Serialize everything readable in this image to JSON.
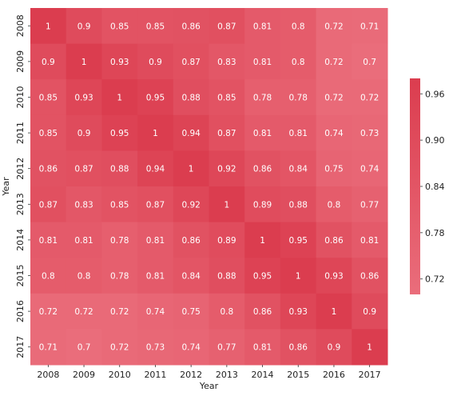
{
  "chart_data": {
    "type": "heatmap",
    "title": "",
    "xlabel": "Year",
    "ylabel": "Year",
    "x_categories": [
      "2008",
      "2009",
      "2010",
      "2011",
      "2012",
      "2013",
      "2014",
      "2015",
      "2016",
      "2017"
    ],
    "y_categories": [
      "2008",
      "2009",
      "2010",
      "2011",
      "2012",
      "2013",
      "2014",
      "2015",
      "2016",
      "2017"
    ],
    "values": [
      [
        1,
        0.9,
        0.85,
        0.85,
        0.86,
        0.87,
        0.81,
        0.8,
        0.72,
        0.71
      ],
      [
        0.9,
        1,
        0.93,
        0.9,
        0.87,
        0.83,
        0.81,
        0.8,
        0.72,
        0.7
      ],
      [
        0.85,
        0.93,
        1,
        0.95,
        0.88,
        0.85,
        0.78,
        0.78,
        0.72,
        0.72
      ],
      [
        0.85,
        0.9,
        0.95,
        1,
        0.94,
        0.87,
        0.81,
        0.81,
        0.74,
        0.73
      ],
      [
        0.86,
        0.87,
        0.88,
        0.94,
        1,
        0.92,
        0.86,
        0.84,
        0.75,
        0.74
      ],
      [
        0.87,
        0.83,
        0.85,
        0.87,
        0.92,
        1,
        0.89,
        0.88,
        0.8,
        0.77
      ],
      [
        0.81,
        0.81,
        0.78,
        0.81,
        0.86,
        0.89,
        1,
        0.95,
        0.86,
        0.81
      ],
      [
        0.8,
        0.8,
        0.78,
        0.81,
        0.84,
        0.88,
        0.95,
        1,
        0.93,
        0.86
      ],
      [
        0.72,
        0.72,
        0.72,
        0.74,
        0.75,
        0.8,
        0.86,
        0.93,
        1,
        0.9
      ],
      [
        0.71,
        0.7,
        0.72,
        0.73,
        0.74,
        0.77,
        0.81,
        0.86,
        0.9,
        1
      ]
    ],
    "color_scale": {
      "min": 0.7,
      "max": 0.98,
      "low_color": "#ea6d7b",
      "high_color": "#db3d4f",
      "ticks": [
        "0.72",
        "0.78",
        "0.84",
        "0.90",
        "0.96"
      ]
    },
    "colorbar": true,
    "grid": false
  }
}
